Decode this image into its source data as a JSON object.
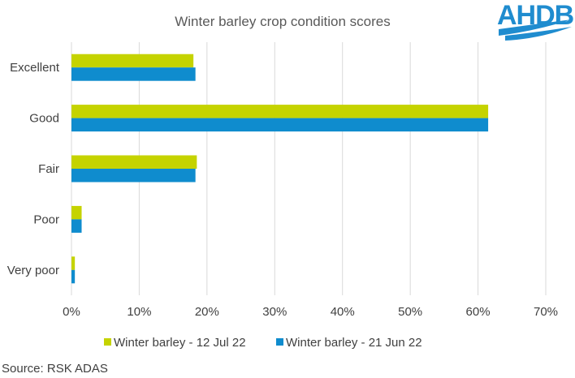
{
  "chart_data": {
    "type": "bar",
    "orientation": "horizontal",
    "title": "Winter barley crop condition scores",
    "categories": [
      "Excellent",
      "Good",
      "Fair",
      "Poor",
      "Very poor"
    ],
    "series": [
      {
        "name": "Winter barley - 12 Jul 22",
        "color": "#c5d300",
        "values": [
          18,
          61.5,
          18.5,
          1.5,
          0.5
        ]
      },
      {
        "name": "Winter barley - 21 Jun 22",
        "color": "#0f8cce",
        "values": [
          18.3,
          61.5,
          18.3,
          1.5,
          0.5
        ]
      }
    ],
    "xlim": [
      0,
      70
    ],
    "xticks": [
      "0%",
      "10%",
      "20%",
      "30%",
      "40%",
      "50%",
      "60%",
      "70%"
    ],
    "grid": true,
    "legend_position": "bottom"
  },
  "source": "Source: RSK ADAS",
  "logo": {
    "text": "AHDB",
    "color": "#1f8ccf"
  }
}
